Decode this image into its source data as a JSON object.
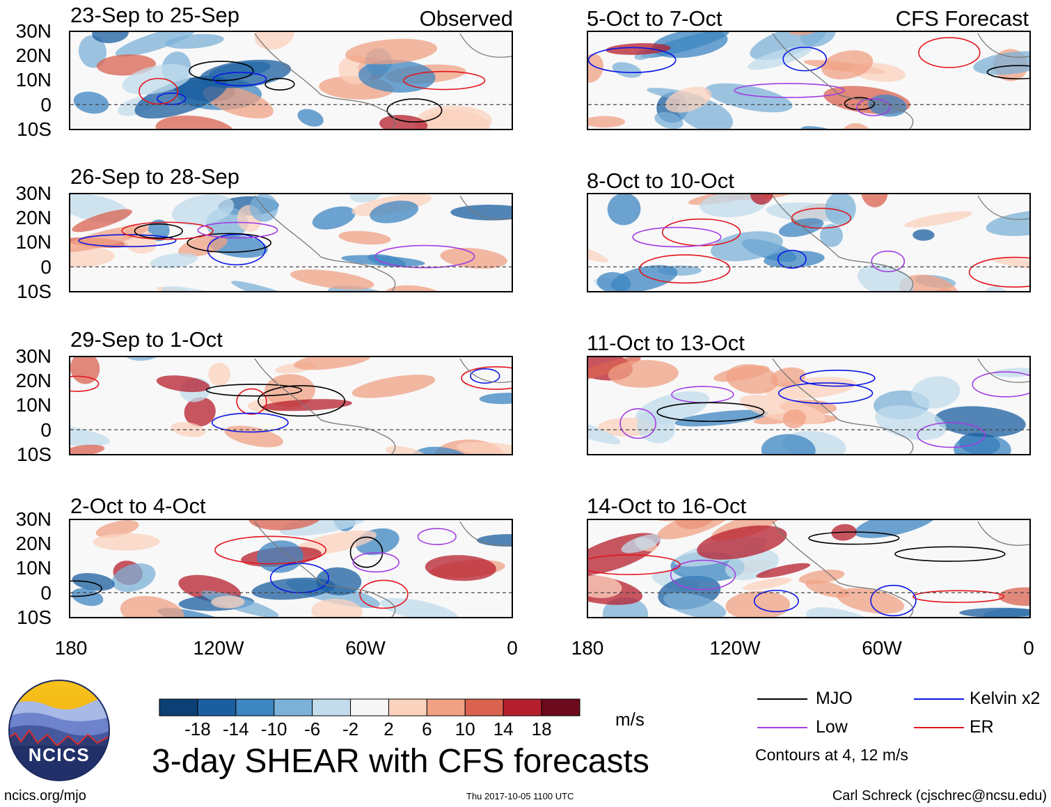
{
  "panels_left": [
    {
      "title": "23-Sep to 25-Sep",
      "subtitle": "Observed"
    },
    {
      "title": "26-Sep to 28-Sep",
      "subtitle": ""
    },
    {
      "title": "29-Sep to 1-Oct",
      "subtitle": ""
    },
    {
      "title": "2-Oct to 4-Oct",
      "subtitle": ""
    }
  ],
  "panels_right": [
    {
      "title": "5-Oct to 7-Oct",
      "subtitle": "CFS Forecast"
    },
    {
      "title": "8-Oct to 10-Oct",
      "subtitle": ""
    },
    {
      "title": "11-Oct to 13-Oct",
      "subtitle": ""
    },
    {
      "title": "14-Oct to 16-Oct",
      "subtitle": ""
    }
  ],
  "lat_labels": [
    "30N",
    "20N",
    "10N",
    "0",
    "10S"
  ],
  "lon_labels": [
    "180",
    "120W",
    "60W",
    "0"
  ],
  "colorbar": {
    "ticks": [
      "-18",
      "-14",
      "-10",
      "-6",
      "-2",
      "2",
      "6",
      "10",
      "14",
      "18"
    ],
    "colors": [
      "#0c3f73",
      "#1b5fa0",
      "#3d86c2",
      "#7cb2d8",
      "#c2dcec",
      "#f6f6f6",
      "#fbd2bd",
      "#f0a184",
      "#da6350",
      "#b51f2e",
      "#6d0b1e"
    ],
    "unit": "m/s"
  },
  "legend": {
    "mjo": "MJO",
    "kelvin": "Kelvin x2",
    "low": "Low",
    "er": "ER",
    "colors": {
      "mjo": "#000000",
      "kelvin": "#0a14e6",
      "low": "#a23de0",
      "er": "#e3141c"
    },
    "contours_note": "Contours at 4, 12 m/s"
  },
  "main_title": "3-day SHEAR with CFS forecasts",
  "logo_text": "NCICS",
  "footer": {
    "url": "ncics.org/mjo",
    "timestamp": "Thu 2017-10-05 1100 UTC",
    "credit": "Carl Schreck (cjschrec@ncsu.edu)"
  }
}
